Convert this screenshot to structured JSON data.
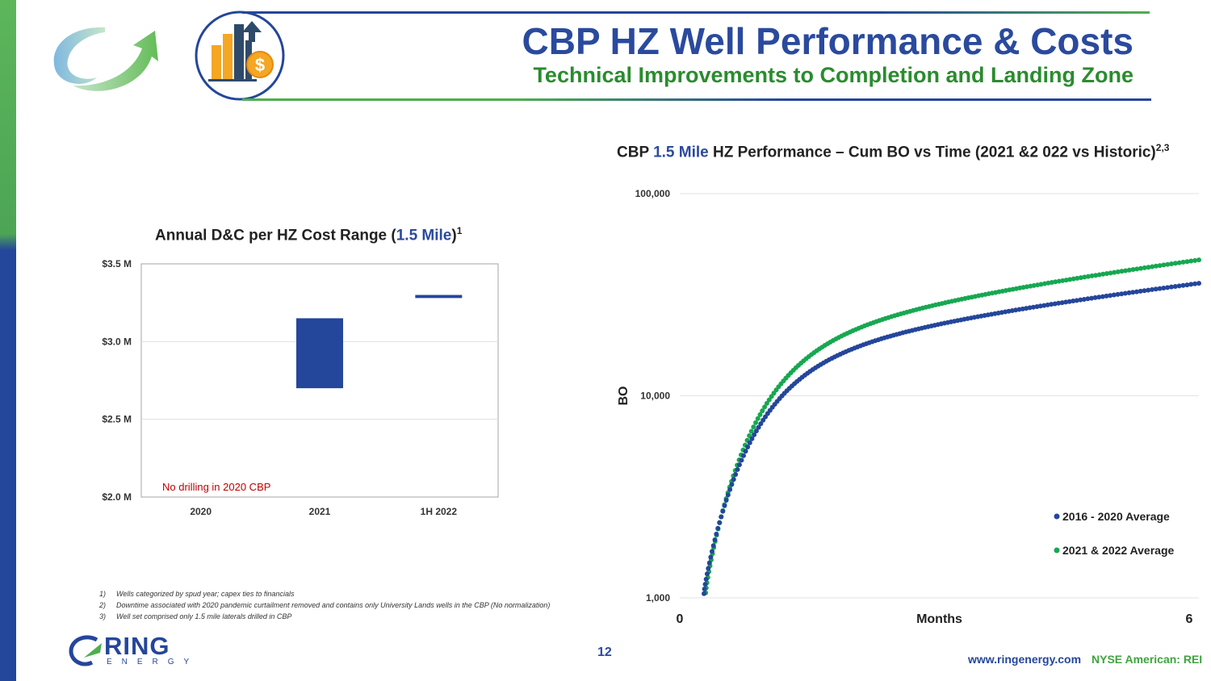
{
  "header": {
    "title": "CBP HZ Well Performance & Costs",
    "subtitle": "Technical Improvements to Completion and Landing Zone",
    "icon": "finance-chart-dollar-icon",
    "logo_icon": "circular-arrow-logo-icon"
  },
  "colors": {
    "blue": "#24469b",
    "green": "#16a851",
    "red": "#c00000",
    "title_blue": "#2a4a9e",
    "title_green": "#2a8c2e"
  },
  "chart_data": [
    {
      "type": "bar",
      "title_prefix": "Annual D&C per HZ Cost Range (",
      "title_highlight": "1.5 Mile",
      "title_suffix": ")",
      "title_sup": "1",
      "categories": [
        "2020",
        "2021",
        "1H 2022"
      ],
      "ranges": [
        null,
        [
          2.7,
          3.15
        ],
        [
          3.28,
          3.3
        ]
      ],
      "ylim": [
        2.0,
        3.5
      ],
      "yticks": [
        3.5,
        3.0,
        2.5,
        2.0
      ],
      "ytick_labels": [
        "$3.5 M",
        "$3.0 M",
        "$2.5 M",
        "$2.0 M"
      ],
      "annotation": "No drilling in 2020 CBP"
    },
    {
      "type": "scatter",
      "title_prefix": "CBP ",
      "title_highlight": "1.5 Mile",
      "title_suffix": " HZ Performance – Cum BO vs Time (2021 &2 022 vs Historic)",
      "title_sup": "2,3",
      "xlabel": "Months",
      "ylabel": "BO",
      "xlim": [
        0,
        6
      ],
      "x_tick_labels": [
        "0",
        "6"
      ],
      "y_scale": "log",
      "ylim": [
        1000,
        100000
      ],
      "y_tick_labels": [
        "100,000",
        "10,000",
        "1,000"
      ],
      "series": [
        {
          "name": "2016 - 2020 Average",
          "color": "#24469b",
          "x_start": 0.28,
          "x_end": 6.0,
          "y_start": 1050,
          "y_end": 36000,
          "points": 170
        },
        {
          "name": "2021 & 2022 Average",
          "color": "#16a851",
          "x_start": 0.3,
          "x_end": 6.0,
          "y_start": 1060,
          "y_end": 47000,
          "points": 170
        }
      ]
    }
  ],
  "footnotes": [
    {
      "num": "1)",
      "text": "Wells categorized by spud year; capex ties to financials"
    },
    {
      "num": "2)",
      "text": "Downtime associated with 2020 pandemic curtailment removed and contains only University Lands wells in the CBP (No normalization)"
    },
    {
      "num": "3)",
      "text": "Well set comprised only 1.5 mile laterals drilled in CBP"
    }
  ],
  "footer": {
    "page_number": "12",
    "logo_text": "RING",
    "logo_sub": "ENERGY",
    "url": "www.ringenergy.com",
    "ticker": "NYSE American: REI"
  }
}
